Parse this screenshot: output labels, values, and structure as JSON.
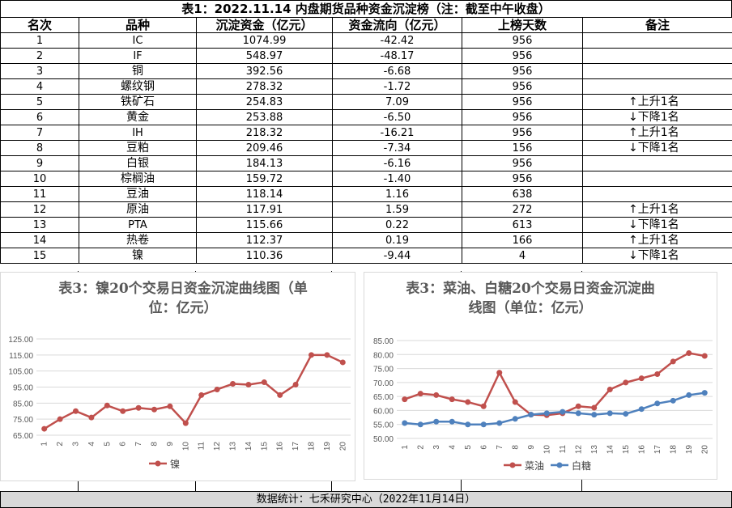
{
  "page_title": "表1：2022.11.14 内盘期货品种资金沉淀榜（注：截至中午收盘）",
  "table": {
    "headers": [
      "名次",
      "品种",
      "沉淀资金（亿元）",
      "资金流向（亿元）",
      "上榜天数",
      "备注"
    ],
    "rows": [
      [
        "1",
        "IC",
        "1074.99",
        "-42.42",
        "956",
        ""
      ],
      [
        "2",
        "IF",
        "548.97",
        "-48.17",
        "956",
        ""
      ],
      [
        "3",
        "铜",
        "392.56",
        "-6.68",
        "956",
        ""
      ],
      [
        "4",
        "螺纹钢",
        "278.32",
        "-1.72",
        "956",
        ""
      ],
      [
        "5",
        "铁矿石",
        "254.83",
        "7.09",
        "956",
        "↑上升1名"
      ],
      [
        "6",
        "黄金",
        "253.88",
        "-6.50",
        "956",
        "↓下降1名"
      ],
      [
        "7",
        "IH",
        "218.32",
        "-16.21",
        "956",
        "↑上升1名"
      ],
      [
        "8",
        "豆粕",
        "209.46",
        "-7.34",
        "156",
        "↓下降1名"
      ],
      [
        "9",
        "白银",
        "184.13",
        "-6.16",
        "956",
        ""
      ],
      [
        "10",
        "棕榈油",
        "159.72",
        "-1.40",
        "956",
        ""
      ],
      [
        "11",
        "豆油",
        "118.14",
        "1.16",
        "638",
        ""
      ],
      [
        "12",
        "原油",
        "117.91",
        "1.59",
        "272",
        "↑上升1名"
      ],
      [
        "13",
        "PTA",
        "115.66",
        "0.22",
        "613",
        "↓下降1名"
      ],
      [
        "14",
        "热卷",
        "112.37",
        "0.19",
        "166",
        "↑上升1名"
      ],
      [
        "15",
        "镍",
        "110.36",
        "-9.44",
        "4",
        "↓下降1名"
      ]
    ]
  },
  "footer": "数据统计：七禾研究中心（2022年11月14日）",
  "chart_data": [
    {
      "type": "line",
      "title": "表3：镍20个交易日资金沉淀曲线图（单位：亿元）",
      "x": [
        1,
        2,
        3,
        4,
        5,
        6,
        7,
        8,
        9,
        10,
        11,
        12,
        13,
        14,
        15,
        16,
        17,
        18,
        19,
        20
      ],
      "yticks": [
        "65.00",
        "75.00",
        "85.00",
        "95.00",
        "105.00",
        "115.00",
        "125.00"
      ],
      "ylim": [
        65,
        125
      ],
      "series": [
        {
          "name": "镍",
          "color": "#c0504d",
          "values": [
            69,
            75,
            80,
            76,
            83.5,
            80,
            82,
            81,
            83,
            72.5,
            90,
            93.5,
            97,
            96.5,
            98,
            90,
            96.5,
            115,
            115,
            110.4
          ]
        }
      ]
    },
    {
      "type": "line",
      "title": "表3：菜油、白糖20个交易日资金沉淀曲线图（单位：亿元）",
      "x": [
        1,
        2,
        3,
        4,
        5,
        6,
        7,
        8,
        9,
        10,
        11,
        12,
        13,
        14,
        15,
        16,
        17,
        18,
        19,
        20
      ],
      "yticks": [
        "50.00",
        "55.00",
        "60.00",
        "65.00",
        "70.00",
        "75.00",
        "80.00",
        "85.00"
      ],
      "ylim": [
        50,
        85
      ],
      "series": [
        {
          "name": "菜油",
          "color": "#c0504d",
          "values": [
            64,
            66,
            65.5,
            64,
            63,
            61.5,
            73.5,
            63,
            58.5,
            58.3,
            59,
            61.5,
            61,
            67.5,
            70,
            71.5,
            73,
            77.5,
            80.5,
            79.5
          ]
        },
        {
          "name": "白糖",
          "color": "#4f81bd",
          "values": [
            55.5,
            55,
            56,
            56,
            55,
            55,
            55.5,
            57,
            58.5,
            59,
            59.5,
            59,
            58.5,
            59,
            58.8,
            60.5,
            62.5,
            63.5,
            65.5,
            66.3
          ]
        }
      ]
    }
  ]
}
